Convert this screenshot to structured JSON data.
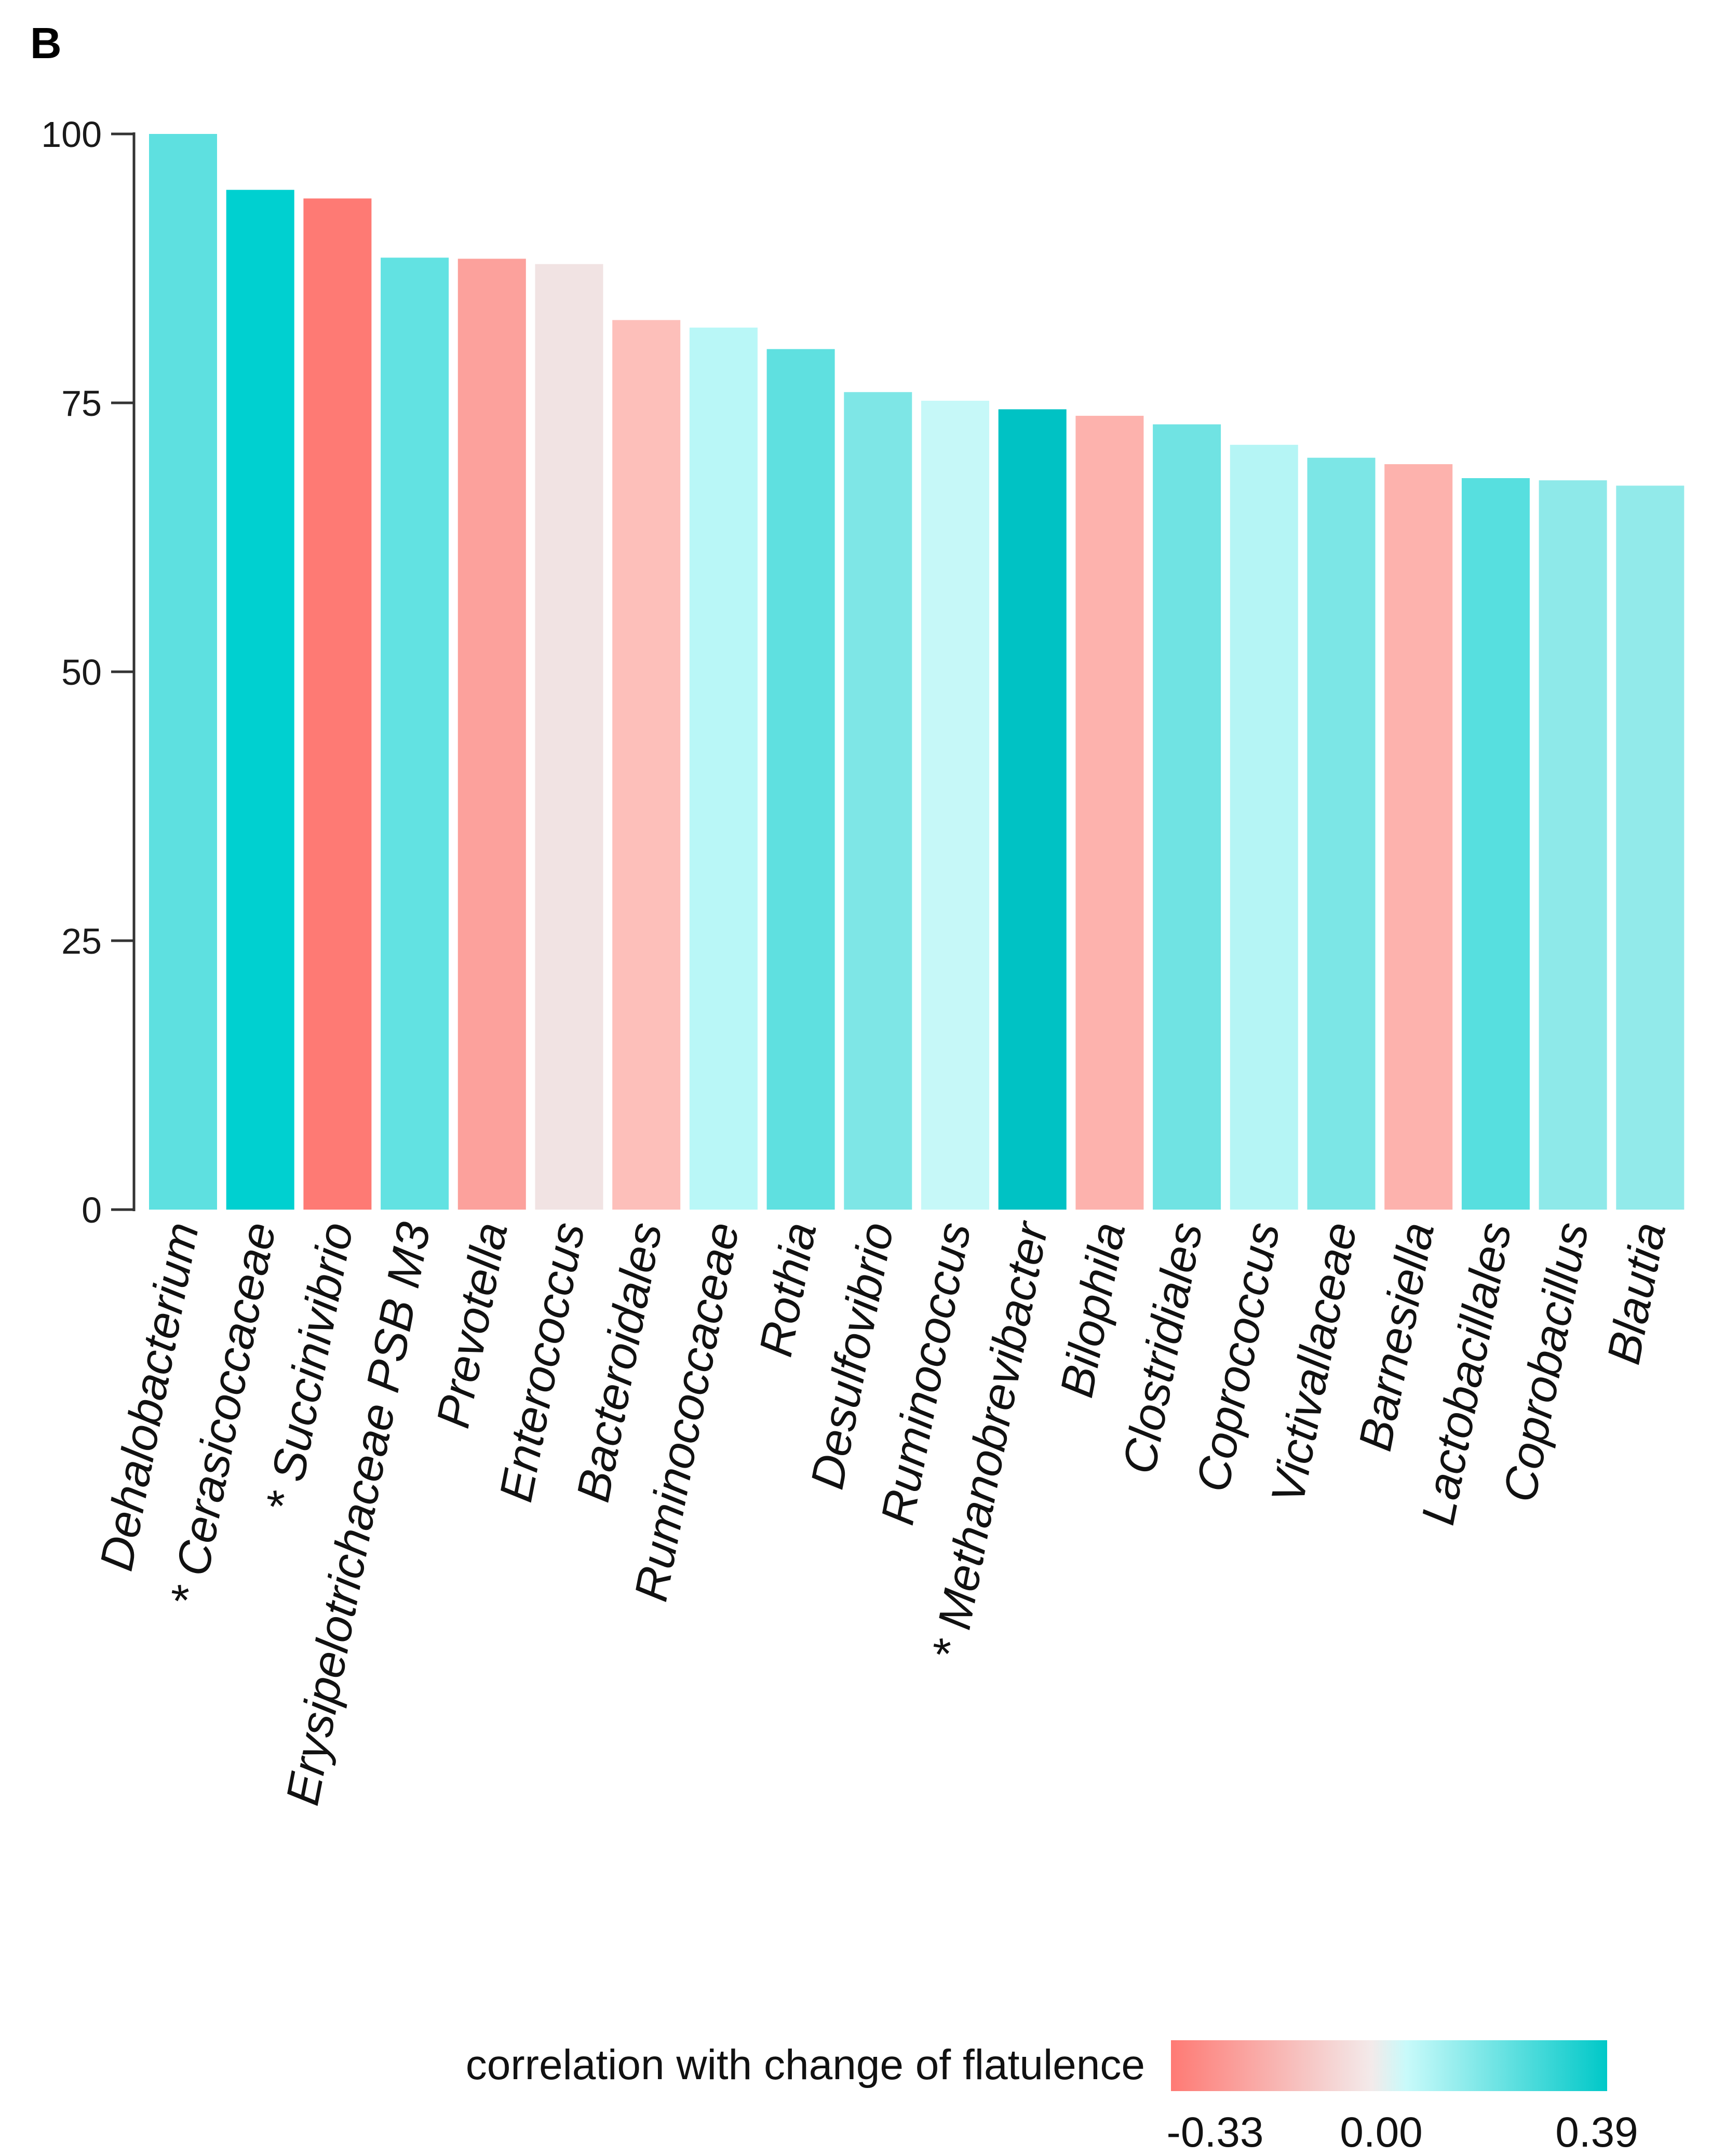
{
  "panel_label": "B",
  "chart_data": {
    "type": "bar",
    "title": "",
    "xlabel": "",
    "ylabel": "",
    "ylim": [
      0,
      100
    ],
    "yticks": [
      0,
      25,
      50,
      75,
      100
    ],
    "categories": [
      "Dehalobacterium",
      "* Cerasicoccaceae",
      "* Succinivibrio",
      "Erysipelotrichaceae PSB M3",
      "Prevotella",
      "Enterococcus",
      "Bacteroidales",
      "Ruminococcaceae",
      "Rothia",
      "Desulfovibrio",
      "Ruminococcus",
      "* Methanobrevibacter",
      "Bilophila",
      "Clostridiales",
      "Coprococcus",
      "Victivallaceae",
      "Barnesiella",
      "Lactobacillales",
      "Coprobacillus",
      "Blautia"
    ],
    "values": [
      100,
      94.8,
      94,
      88.5,
      88.4,
      87.9,
      82.7,
      82,
      80,
      76,
      75.2,
      74.4,
      73.8,
      73,
      71.1,
      69.9,
      69.3,
      68,
      67.8,
      67.3
    ],
    "colors": [
      "#5ee0e0",
      "#00d0d0",
      "#fe7a74",
      "#62e2e2",
      "#fca19c",
      "#f1e3e3",
      "#fdbfba",
      "#b9f7f7",
      "#5fe0e0",
      "#7ee6e6",
      "#c6f8f8",
      "#00c2c4",
      "#fdb2ad",
      "#70e3e3",
      "#b5f5f5",
      "#7ce6e6",
      "#fdb2ad",
      "#57dfdf",
      "#8ee9e9",
      "#92eaea"
    ],
    "legend": {
      "title": "correlation with change of flatulence",
      "min_label": "-0.33",
      "mid_label": "0.00",
      "max_label": "0.39",
      "min_value": -0.33,
      "max_value": 0.39,
      "gradient_colors": [
        "#fe7a74",
        "#f3eaea",
        "#c8fafa",
        "#00c8c8"
      ],
      "position": "bottom-right"
    }
  }
}
